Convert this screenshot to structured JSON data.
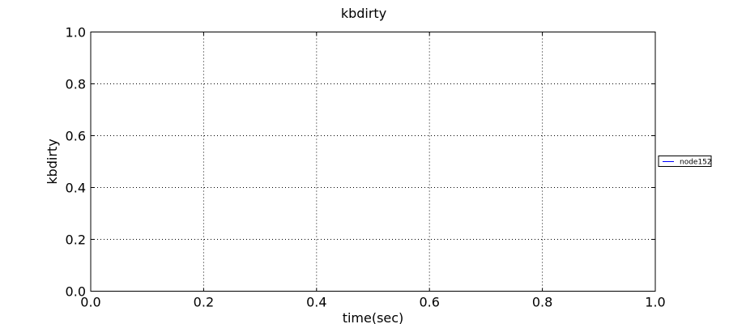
{
  "chart_data": {
    "type": "line",
    "title": "kbdirty",
    "xlabel": "time(sec)",
    "ylabel": "kbdirty",
    "xlim": [
      0.0,
      1.0
    ],
    "ylim": [
      0.0,
      1.0
    ],
    "xticks": [
      "0.0",
      "0.2",
      "0.4",
      "0.6",
      "0.8",
      "1.0"
    ],
    "yticks": [
      "0.0",
      "0.2",
      "0.4",
      "0.6",
      "0.8",
      "1.0"
    ],
    "grid": true,
    "legend_position": "right",
    "series": [
      {
        "name": "node152",
        "color": "#0000ff",
        "x": [],
        "y": []
      }
    ]
  }
}
